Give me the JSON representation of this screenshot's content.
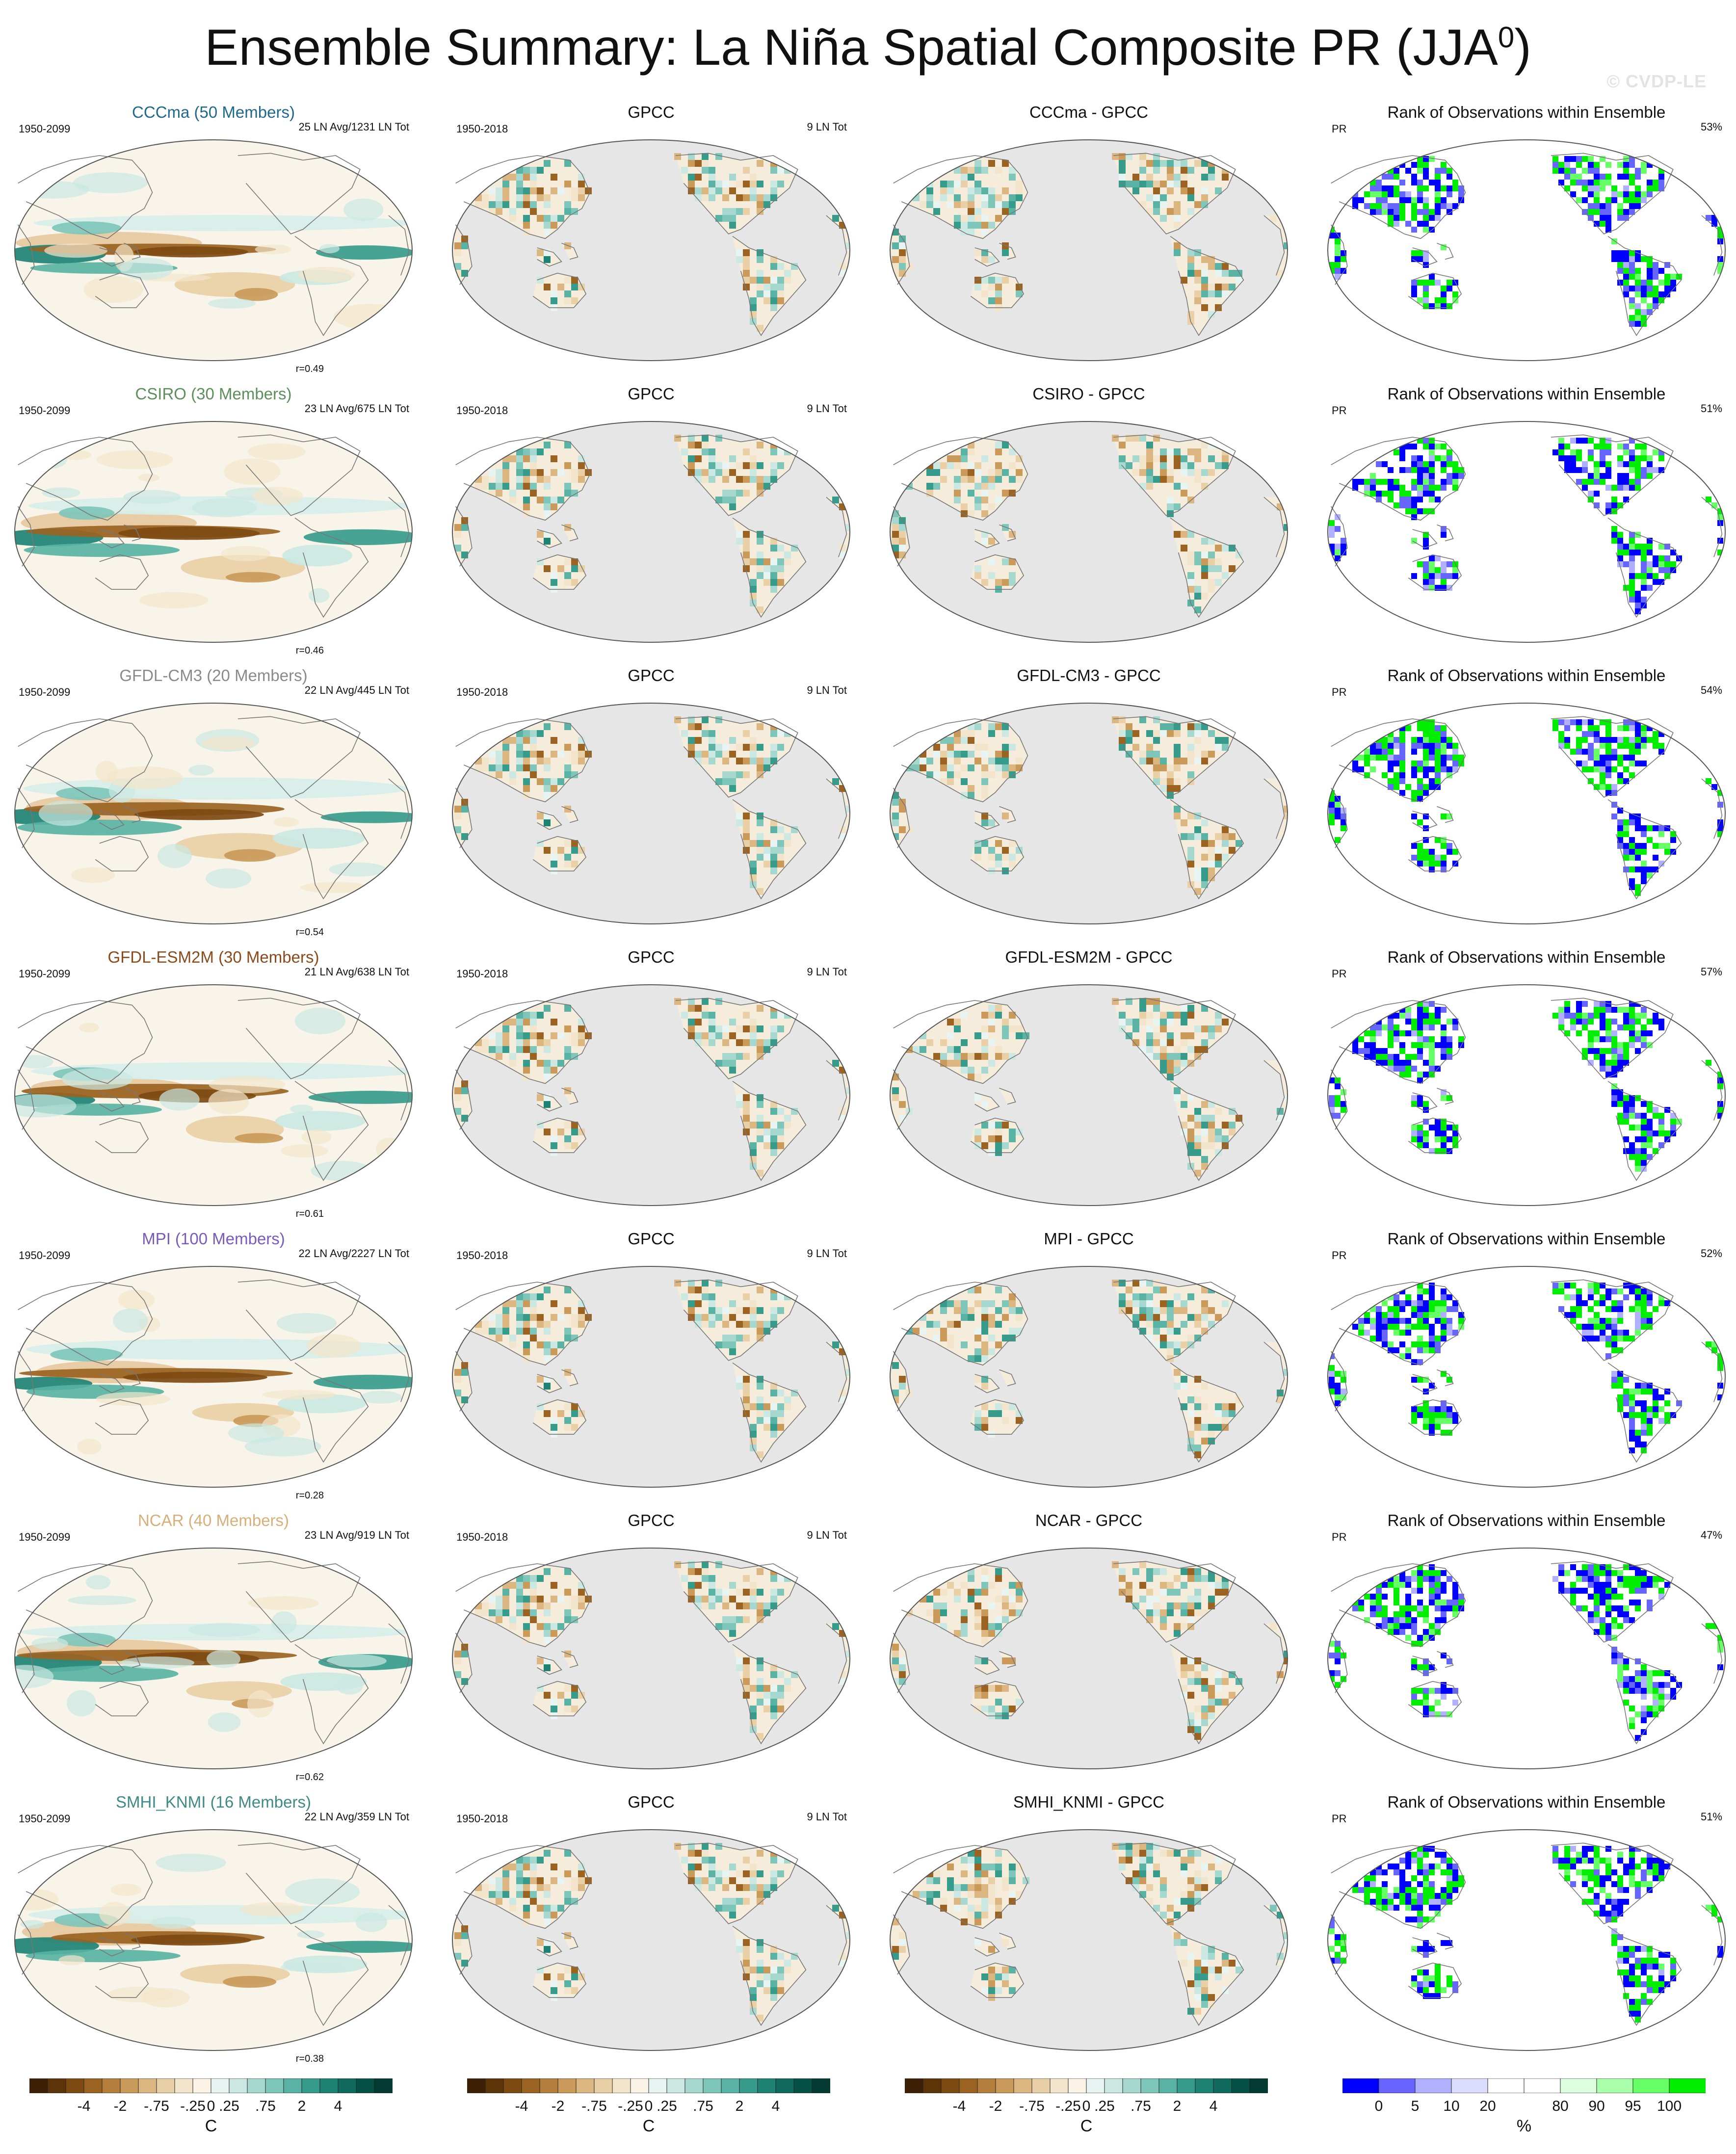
{
  "title": {
    "main": "Ensemble Summary: La Niña Spatial Composite PR (JJA",
    "sup": "0",
    "end": ")"
  },
  "watermark": "© CVDP-LE",
  "columns": [
    "model",
    "obs",
    "diff",
    "rank"
  ],
  "rows": [
    {
      "model": "CCCma (50 Members)",
      "model_color": "#1f6a8c",
      "left": "1950-2099",
      "avg": "25 LN Avg/1231 LN Tot",
      "r": "r=0.49",
      "obs": "GPCC",
      "obs_left": "1950-2018",
      "obs_right": "9 LN Tot",
      "diff": "CCCma - GPCC",
      "rank": "Rank of Observations within Ensemble",
      "rank_left": "PR",
      "rank_pct": "53%",
      "blue_bias": 0.55
    },
    {
      "model": "CSIRO (30 Members)",
      "model_color": "#5d8f5d",
      "left": "1950-2099",
      "avg": "23 LN Avg/675 LN Tot",
      "r": "r=0.46",
      "obs": "GPCC",
      "obs_left": "1950-2018",
      "obs_right": "9 LN Tot",
      "diff": "CSIRO - GPCC",
      "rank": "Rank of Observations within Ensemble",
      "rank_left": "PR",
      "rank_pct": "51%",
      "blue_bias": 0.5
    },
    {
      "model": "GFDL-CM3 (20 Members)",
      "model_color": "#8a8a8a",
      "left": "1950-2099",
      "avg": "22 LN Avg/445 LN Tot",
      "r": "r=0.54",
      "obs": "GPCC",
      "obs_left": "1950-2018",
      "obs_right": "9 LN Tot",
      "diff": "GFDL-CM3 - GPCC",
      "rank": "Rank of Observations within Ensemble",
      "rank_left": "PR",
      "rank_pct": "54%",
      "blue_bias": 0.45
    },
    {
      "model": "GFDL-ESM2M (30 Members)",
      "model_color": "#8b4a1c",
      "left": "1950-2099",
      "avg": "21 LN Avg/638 LN Tot",
      "r": "r=0.61",
      "obs": "GPCC",
      "obs_left": "1950-2018",
      "obs_right": "9 LN Tot",
      "diff": "GFDL-ESM2M - GPCC",
      "rank": "Rank of Observations within Ensemble",
      "rank_left": "PR",
      "rank_pct": "57%",
      "blue_bias": 0.5
    },
    {
      "model": "MPI (100 Members)",
      "model_color": "#7a5abf",
      "left": "1950-2099",
      "avg": "22 LN Avg/2227 LN Tot",
      "r": "r=0.28",
      "obs": "GPCC",
      "obs_left": "1950-2018",
      "obs_right": "9 LN Tot",
      "diff": "MPI - GPCC",
      "rank": "Rank of Observations within Ensemble",
      "rank_left": "PR",
      "rank_pct": "52%",
      "blue_bias": 0.5
    },
    {
      "model": "NCAR (40 Members)",
      "model_color": "#d6b07a",
      "left": "1950-2099",
      "avg": "23 LN Avg/919 LN Tot",
      "r": "r=0.62",
      "obs": "GPCC",
      "obs_left": "1950-2018",
      "obs_right": "9 LN Tot",
      "diff": "NCAR - GPCC",
      "rank": "Rank of Observations within Ensemble",
      "rank_left": "PR",
      "rank_pct": "47%",
      "blue_bias": 0.6
    },
    {
      "model": "SMHI_KNMI (16 Members)",
      "model_color": "#3f8a85",
      "left": "1950-2099",
      "avg": "22 LN Avg/359 LN Tot",
      "r": "r=0.38",
      "obs": "GPCC",
      "obs_left": "1950-2018",
      "obs_right": "9 LN Tot",
      "diff": "SMHI_KNMI - GPCC",
      "rank": "Rank of Observations within Ensemble",
      "rank_left": "PR",
      "rank_pct": "51%",
      "blue_bias": 0.4
    }
  ],
  "colorbars": {
    "diverging": {
      "colors": [
        "#3d2005",
        "#5c3408",
        "#7d4a12",
        "#9a6322",
        "#b47e3c",
        "#c99a5a",
        "#dbb680",
        "#e9d0a6",
        "#f3e5cb",
        "#faf3e6",
        "#e8f4f1",
        "#cbe8e2",
        "#a6d8cf",
        "#7fc6ba",
        "#59b2a3",
        "#379b8c",
        "#1e8274",
        "#0f695d",
        "#065146",
        "#033b32"
      ],
      "ticks": [
        "-4",
        "-2",
        "-.75",
        "-.25",
        "0",
        ".25",
        ".75",
        "2",
        "4"
      ],
      "label": "C"
    },
    "rank": {
      "colors": [
        "#0000ff",
        "#6666ff",
        "#b0b0ff",
        "#dcdcff",
        "#ffffff",
        "#ffffff",
        "#dcffdc",
        "#aaffaa",
        "#66ff66",
        "#00ee00"
      ],
      "ticks": [
        "0",
        "5",
        "10",
        "20",
        "80",
        "90",
        "95",
        "100"
      ],
      "label": "%"
    }
  }
}
